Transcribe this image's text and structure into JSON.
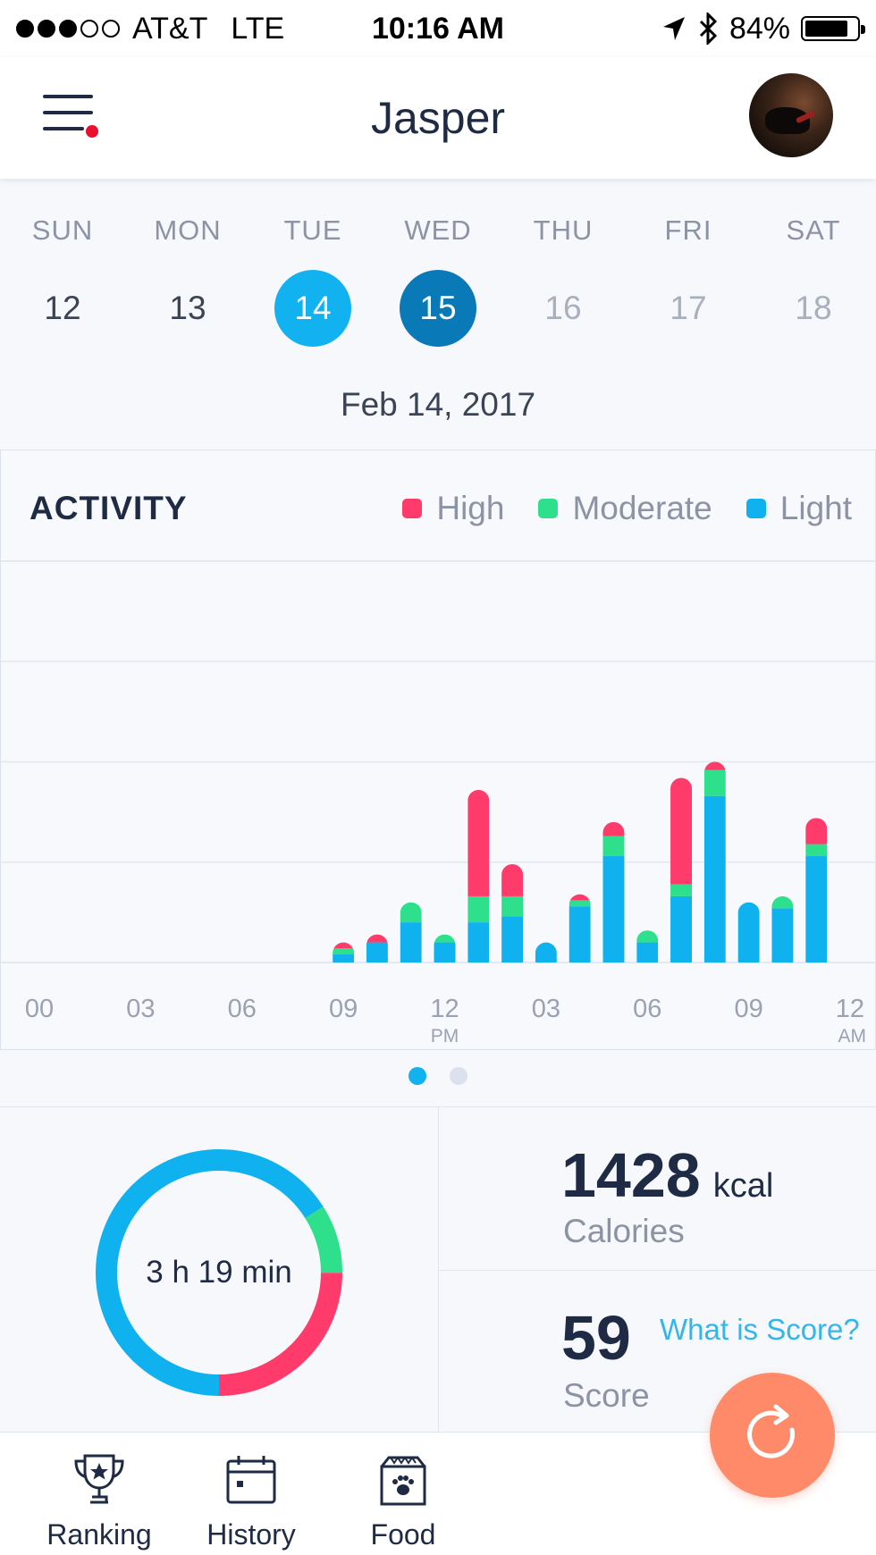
{
  "status_bar": {
    "carrier": "AT&T",
    "network": "LTE",
    "time": "10:16 AM",
    "battery": "84%",
    "battery_level": 0.84,
    "signal_bars": 3,
    "signal_total": 5
  },
  "header": {
    "title": "Jasper",
    "menu_icon": "menu-icon",
    "has_notification": true
  },
  "week": {
    "days": [
      {
        "name": "SUN",
        "num": "12",
        "state": "past"
      },
      {
        "name": "MON",
        "num": "13",
        "state": "past"
      },
      {
        "name": "TUE",
        "num": "14",
        "state": "selected"
      },
      {
        "name": "WED",
        "num": "15",
        "state": "today"
      },
      {
        "name": "THU",
        "num": "16",
        "state": "future"
      },
      {
        "name": "FRI",
        "num": "17",
        "state": "future"
      },
      {
        "name": "SAT",
        "num": "18",
        "state": "future"
      }
    ],
    "date_label": "Feb 14, 2017"
  },
  "activity": {
    "title": "ACTIVITY",
    "legend": [
      {
        "label": "High",
        "color": "#ff3b6b"
      },
      {
        "label": "Moderate",
        "color": "#2ee08c"
      },
      {
        "label": "Light",
        "color": "#0fb2ef"
      }
    ]
  },
  "chart_data": {
    "type": "bar",
    "stacked": true,
    "x_ticks": [
      {
        "label": "00",
        "sub": "",
        "hour": 0
      },
      {
        "label": "03",
        "sub": "",
        "hour": 3
      },
      {
        "label": "06",
        "sub": "",
        "hour": 6
      },
      {
        "label": "09",
        "sub": "",
        "hour": 9
      },
      {
        "label": "12",
        "sub": "PM",
        "hour": 12
      },
      {
        "label": "03",
        "sub": "",
        "hour": 15
      },
      {
        "label": "06",
        "sub": "",
        "hour": 18
      },
      {
        "label": "09",
        "sub": "",
        "hour": 21
      },
      {
        "label": "12",
        "sub": "AM",
        "hour": 24
      }
    ],
    "ylim": [
      0,
      4
    ],
    "grid": true,
    "series_colors": {
      "light": "#0fb2ef",
      "moderate": "#2ee08c",
      "high": "#ff3b6b"
    },
    "bars": [
      {
        "hour": 9.0,
        "light": 0.08,
        "moderate": 0.06,
        "high": 0.06
      },
      {
        "hour": 10.0,
        "light": 0.2,
        "moderate": 0.0,
        "high": 0.08
      },
      {
        "hour": 11.0,
        "light": 0.4,
        "moderate": 0.2,
        "high": 0.0
      },
      {
        "hour": 12.0,
        "light": 0.2,
        "moderate": 0.08,
        "high": 0.0
      },
      {
        "hour": 13.0,
        "light": 0.4,
        "moderate": 0.26,
        "high": 1.06
      },
      {
        "hour": 14.0,
        "light": 0.46,
        "moderate": 0.2,
        "high": 0.32
      },
      {
        "hour": 15.0,
        "light": 0.2,
        "moderate": 0.0,
        "high": 0.0
      },
      {
        "hour": 16.0,
        "light": 0.56,
        "moderate": 0.06,
        "high": 0.06
      },
      {
        "hour": 17.0,
        "light": 1.06,
        "moderate": 0.2,
        "high": 0.14
      },
      {
        "hour": 18.0,
        "light": 0.2,
        "moderate": 0.12,
        "high": 0.0
      },
      {
        "hour": 19.0,
        "light": 0.66,
        "moderate": 0.12,
        "high": 1.06
      },
      {
        "hour": 20.0,
        "light": 1.66,
        "moderate": 0.26,
        "high": 0.08
      },
      {
        "hour": 21.0,
        "light": 0.6,
        "moderate": 0.0,
        "high": 0.0
      },
      {
        "hour": 22.0,
        "light": 0.54,
        "moderate": 0.12,
        "high": 0.0
      },
      {
        "hour": 23.0,
        "light": 1.06,
        "moderate": 0.12,
        "high": 0.26
      }
    ]
  },
  "summary": {
    "duration": "3 h 19 min",
    "ring": {
      "light": 0.66,
      "moderate": 0.09,
      "high": 0.25
    },
    "calories_value": "1428",
    "calories_unit": "kcal",
    "calories_label": "Calories",
    "score_value": "59",
    "score_label": "Score",
    "score_link": "What is Score?"
  },
  "tabs": [
    {
      "label": "Ranking",
      "icon": "trophy-icon"
    },
    {
      "label": "History",
      "icon": "calendar-icon"
    },
    {
      "label": "Food",
      "icon": "food-bag-icon"
    }
  ],
  "fab": {
    "icon": "refresh-icon"
  }
}
